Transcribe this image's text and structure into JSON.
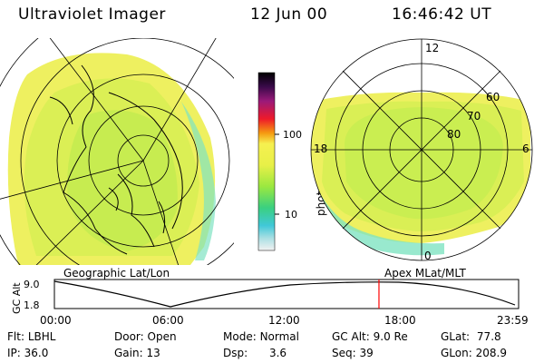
{
  "header": {
    "title": "Ultraviolet Imager",
    "date": "12 Jun 00",
    "time": "16:46:42 UT"
  },
  "panels": {
    "left_label": "Geographic Lat/Lon",
    "right_label": "Apex MLat/MLT",
    "polar_hours": [
      "12",
      "18",
      "6",
      "0"
    ],
    "polar_lats": [
      "60",
      "70",
      "80"
    ]
  },
  "colorbar": {
    "unit": "photon cm⁻²s⁻¹",
    "ticks": [
      "100",
      "10"
    ]
  },
  "timeline": {
    "ylabel": "GC Alt",
    "y_ticks": [
      "9.0",
      "1.8"
    ],
    "x_ticks": [
      "00:00",
      "06:00",
      "12:00",
      "18:00",
      "23:59"
    ],
    "current_marker_hours": 16.78
  },
  "info": {
    "flt_label": "Flt:",
    "flt_value": "LBHL",
    "ip_label": "IP:",
    "ip_value": "36.0",
    "door_label": "Door:",
    "door_value": "Open",
    "gain_label": "Gain:",
    "gain_value": "13",
    "mode_label": "Mode:",
    "mode_value": "Normal",
    "dsp_label": "Dsp:",
    "dsp_value": "3.6",
    "gcalt_label": "GC Alt:",
    "gcalt_value": "9.0 Re",
    "seq_label": "Seq:",
    "seq_value": "39",
    "glat_label": "GLat:",
    "glat_value": "77.8",
    "glon_label": "GLon:",
    "glon_value": "208.9"
  },
  "colors": {
    "aurora_fill": "#f2f25a",
    "aurora_bright": "#c9f04a",
    "aurora_edge": "#7ee0c8",
    "marker": "#ff0000"
  }
}
